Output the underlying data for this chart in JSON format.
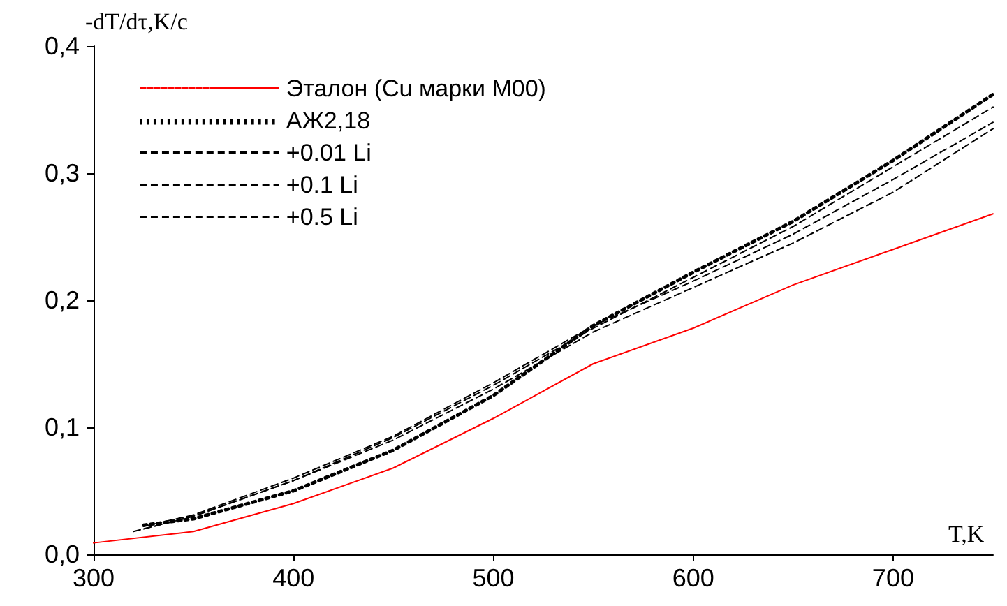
{
  "chart_data": {
    "type": "line",
    "xlabel": "T,K",
    "ylabel": "-dT/dτ,K/c",
    "xlim": [
      300,
      750
    ],
    "xticks": [
      300,
      400,
      500,
      600,
      700
    ],
    "ylim": [
      0,
      0.4
    ],
    "yticks": [
      {
        "value": 0,
        "label": "0,0"
      },
      {
        "value": 0.1,
        "label": "0,1"
      },
      {
        "value": 0.2,
        "label": "0,2"
      },
      {
        "value": 0.3,
        "label": "0,3"
      },
      {
        "value": 0.4,
        "label": "0,4"
      }
    ],
    "grid": false,
    "legend": "top left",
    "marker": "none",
    "series": [
      {
        "name": "Эталон (Cu марки М00)",
        "color": "#ff0000",
        "line_style": "solid",
        "x": [
          300,
          350,
          400,
          450,
          500,
          550,
          600,
          650,
          700,
          750
        ],
        "values": [
          0.009,
          0.018,
          0.04,
          0.068,
          0.107,
          0.15,
          0.178,
          0.212,
          0.24,
          0.268
        ]
      },
      {
        "name": "АЖ2,18",
        "color": "#000000",
        "line_style": "dotted",
        "x": [
          325,
          350,
          400,
          450,
          500,
          550,
          600,
          650,
          700,
          750
        ],
        "values": [
          0.023,
          0.028,
          0.05,
          0.082,
          0.125,
          0.18,
          0.222,
          0.262,
          0.31,
          0.362
        ]
      },
      {
        "name": "+0.01 Li",
        "color": "#000000",
        "line_style": "dashed",
        "x": [
          320,
          350,
          400,
          450,
          500,
          550,
          600,
          650,
          700,
          750
        ],
        "values": [
          0.018,
          0.03,
          0.058,
          0.09,
          0.13,
          0.175,
          0.21,
          0.245,
          0.285,
          0.335
        ]
      },
      {
        "name": "+0.1 Li",
        "color": "#000000",
        "line_style": "dashed",
        "x": [
          325,
          350,
          400,
          450,
          500,
          550,
          600,
          650,
          700,
          750
        ],
        "values": [
          0.022,
          0.031,
          0.06,
          0.093,
          0.135,
          0.18,
          0.215,
          0.252,
          0.295,
          0.34
        ]
      },
      {
        "name": "+0.5 Li",
        "color": "#000000",
        "line_style": "dashed",
        "x": [
          325,
          350,
          400,
          450,
          500,
          550,
          600,
          650,
          700,
          750
        ],
        "values": [
          0.02,
          0.03,
          0.058,
          0.092,
          0.133,
          0.178,
          0.218,
          0.258,
          0.305,
          0.352
        ]
      }
    ]
  }
}
